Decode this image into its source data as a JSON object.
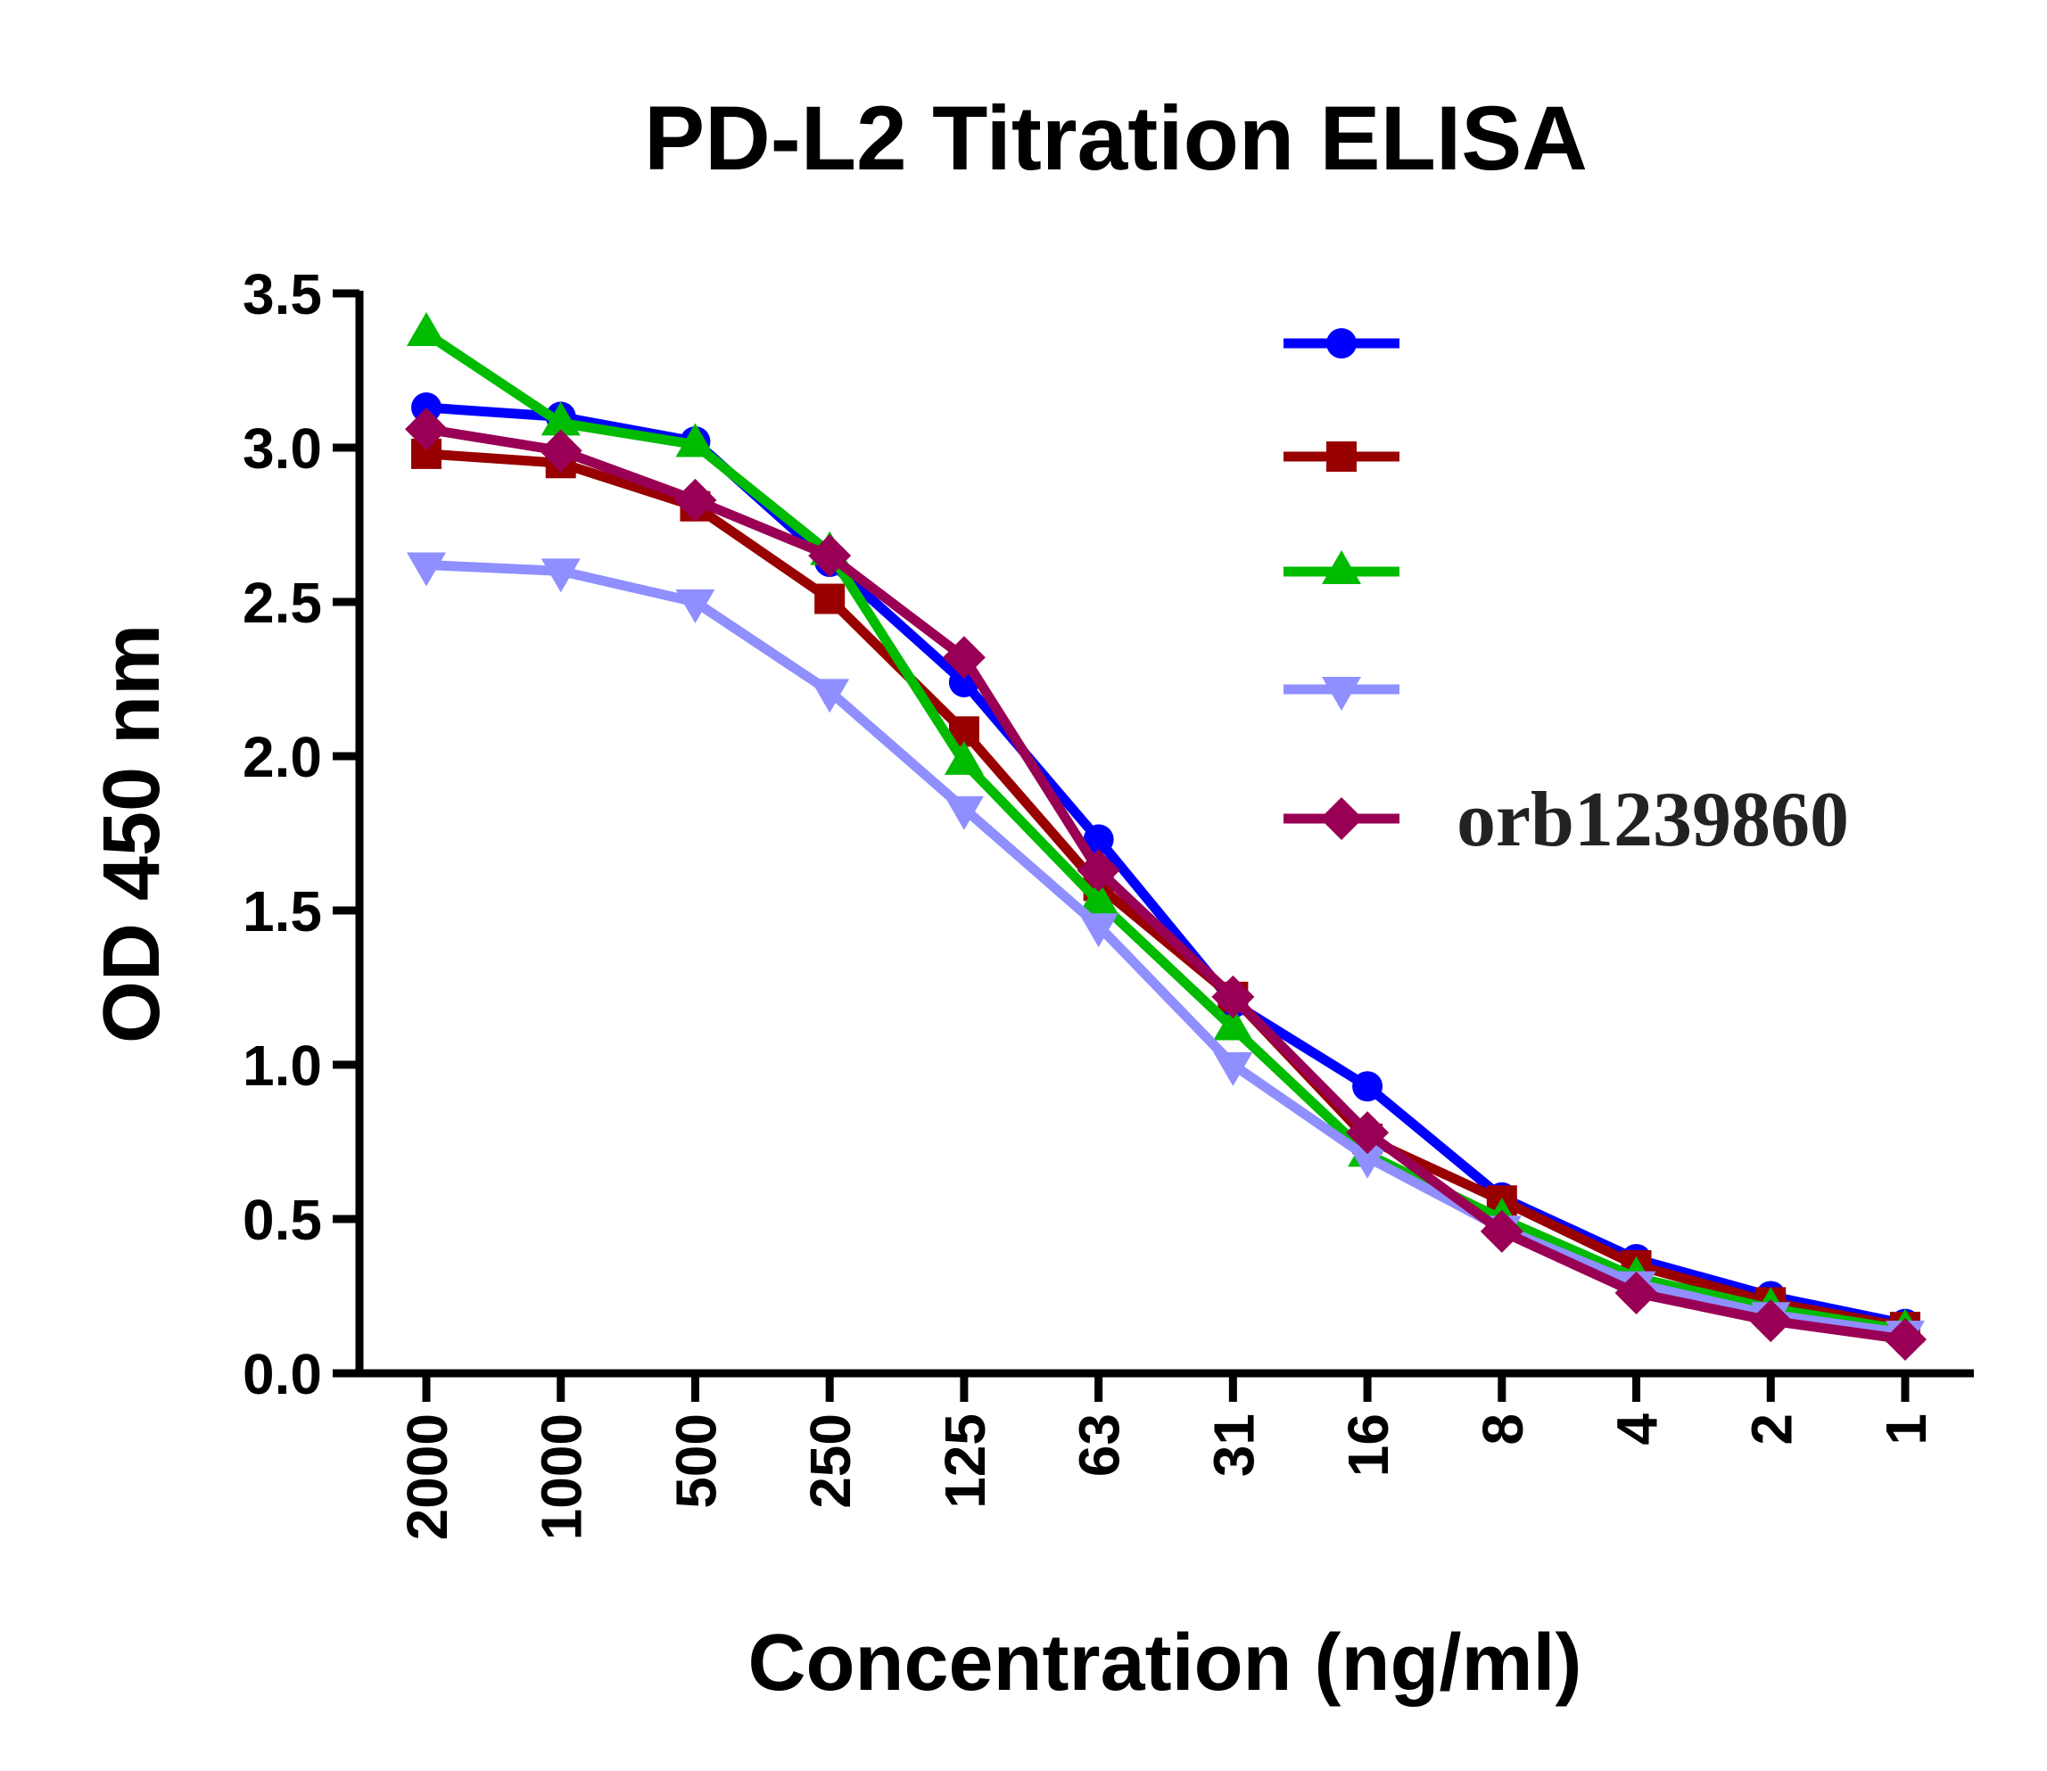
{
  "chart_data": {
    "type": "line",
    "title": "PD-L2 Titration ELISA",
    "xlabel": "Concentration (ng/ml)",
    "ylabel": "OD 450 nm",
    "categories": [
      "2000",
      "1000",
      "500",
      "250",
      "125",
      "63",
      "31",
      "16",
      "8",
      "4",
      "2",
      "1"
    ],
    "ylim": [
      0,
      3.5
    ],
    "yticks": [
      "0.0",
      "0.5",
      "1.0",
      "1.5",
      "2.0",
      "2.5",
      "3.0",
      "3.5"
    ],
    "grid": false,
    "legend_placement": "top-right",
    "series": [
      {
        "label": "",
        "color": "#0000ff",
        "marker": "circle",
        "values": [
          3.13,
          3.1,
          3.02,
          2.63,
          2.24,
          1.73,
          1.2,
          0.93,
          0.57,
          0.37,
          0.25,
          0.16
        ]
      },
      {
        "label": "",
        "color": "#990000",
        "marker": "square",
        "values": [
          2.98,
          2.95,
          2.81,
          2.51,
          2.08,
          1.58,
          1.22,
          0.76,
          0.56,
          0.35,
          0.23,
          0.15
        ]
      },
      {
        "label": "",
        "color": "#00bb00",
        "marker": "triangle-up",
        "values": [
          3.37,
          3.08,
          3.01,
          2.66,
          1.98,
          1.53,
          1.12,
          0.71,
          0.5,
          0.31,
          0.21,
          0.14
        ]
      },
      {
        "label": "",
        "color": "#8f8fff",
        "marker": "triangle-down",
        "values": [
          2.62,
          2.6,
          2.5,
          2.21,
          1.83,
          1.45,
          1.0,
          0.7,
          0.47,
          0.29,
          0.19,
          0.13
        ]
      },
      {
        "name": "orb1239860",
        "color": "#990055",
        "marker": "diamond",
        "values": [
          3.06,
          2.99,
          2.83,
          2.65,
          2.32,
          1.63,
          1.22,
          0.78,
          0.46,
          0.26,
          0.17,
          0.11
        ]
      }
    ]
  }
}
